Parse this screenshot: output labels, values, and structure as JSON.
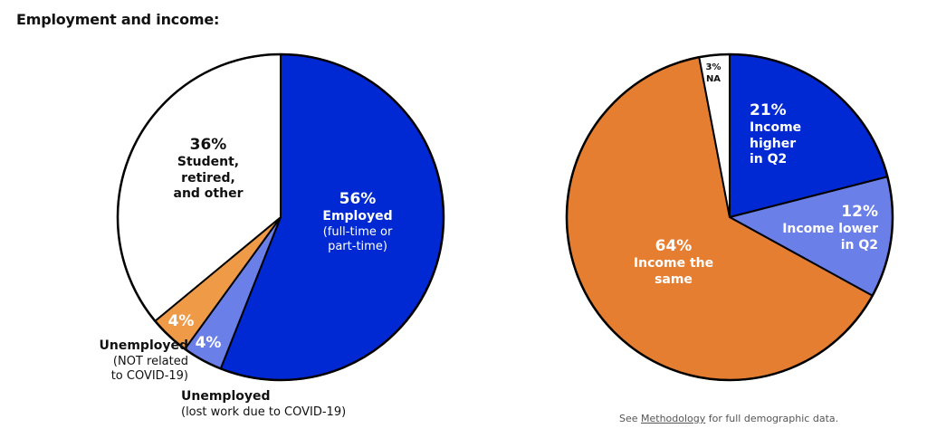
{
  "title": "Employment and income:",
  "footnote": {
    "prefix": "See ",
    "link": "Methodology",
    "suffix": " for full demographic data."
  },
  "colors": {
    "dark_blue": "#0029D3",
    "light_blue": "#6A7FE8",
    "orange": "#E67E31",
    "light_orange": "#EF9A47",
    "white": "#FFFFFF"
  },
  "chart_data": [
    {
      "type": "pie",
      "title": "",
      "slices": [
        {
          "pct": "56%",
          "name": "Employed",
          "detail": "(full-time or part-time)",
          "value": 56,
          "color": "#0029D3"
        },
        {
          "pct": "4%",
          "name": "Unemployed",
          "detail": "(lost work due to COVID-19)",
          "value": 4,
          "color": "#6A7FE8"
        },
        {
          "pct": "4%",
          "name": "Unemployed",
          "detail": "(NOT related to COVID-19)",
          "value": 4,
          "color": "#EF9A47"
        },
        {
          "pct": "36%",
          "name": "Student, retired, and other",
          "detail": "",
          "value": 36,
          "color": "#FFFFFF"
        }
      ]
    },
    {
      "type": "pie",
      "title": "",
      "slices": [
        {
          "pct": "21%",
          "name": "Income higher in Q2",
          "value": 21,
          "color": "#0029D3"
        },
        {
          "pct": "12%",
          "name": "Income lower in Q2",
          "value": 12,
          "color": "#6A7FE8"
        },
        {
          "pct": "64%",
          "name": "Income the same",
          "value": 64,
          "color": "#E67E31"
        },
        {
          "pct": "3%",
          "name": "NA",
          "value": 3,
          "color": "#FFFFFF"
        }
      ]
    }
  ]
}
